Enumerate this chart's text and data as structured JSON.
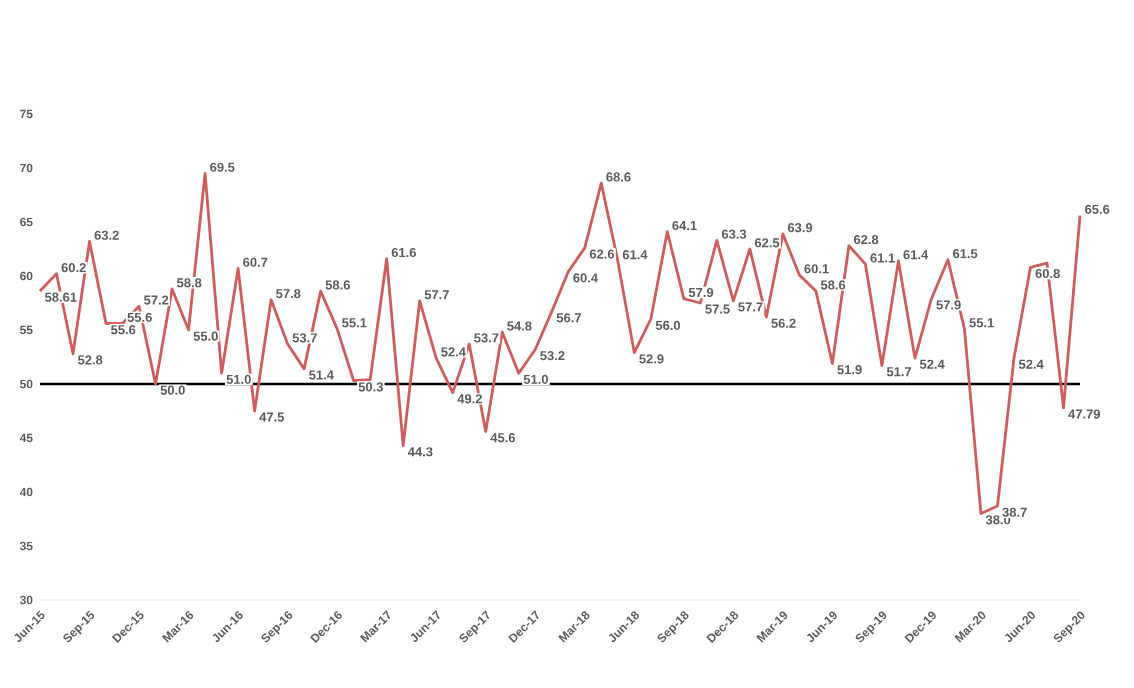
{
  "chart_data": {
    "type": "line",
    "x": [
      "2015-06",
      "2015-07",
      "2015-08",
      "2015-09",
      "2015-10",
      "2015-11",
      "2015-12",
      "2016-01",
      "2016-02",
      "2016-03",
      "2016-04",
      "2016-05",
      "2016-06",
      "2016-07",
      "2016-08",
      "2016-09",
      "2016-10",
      "2016-11",
      "2016-12",
      "2017-01",
      "2017-02",
      "2017-03",
      "2017-04",
      "2017-05",
      "2017-06",
      "2017-07",
      "2017-08",
      "2017-09",
      "2017-10",
      "2017-11",
      "2017-12",
      "2018-01",
      "2018-02",
      "2018-03",
      "2018-04",
      "2018-05",
      "2018-06",
      "2018-07",
      "2018-08",
      "2018-09",
      "2018-10",
      "2018-11",
      "2018-12",
      "2019-01",
      "2019-02",
      "2019-03",
      "2019-04",
      "2019-05",
      "2019-06",
      "2019-07",
      "2019-08",
      "2019-09",
      "2019-10",
      "2019-11",
      "2019-12",
      "2020-01",
      "2020-02",
      "2020-03",
      "2020-04",
      "2020-05",
      "2020-06",
      "2020-07",
      "2020-08",
      "2020-09"
    ],
    "series": [
      {
        "color": "#cd5c5c",
        "values": [
          58.61,
          60.2,
          52.8,
          63.2,
          55.6,
          55.6,
          57.2,
          50.0,
          58.8,
          55.0,
          69.5,
          51.0,
          60.7,
          47.5,
          57.8,
          53.7,
          51.4,
          58.6,
          55.1,
          50.3,
          50.4,
          61.6,
          44.3,
          57.7,
          52.4,
          49.2,
          53.7,
          45.6,
          54.8,
          51.0,
          53.2,
          56.7,
          60.4,
          62.6,
          68.6,
          61.4,
          52.9,
          56.0,
          64.1,
          57.9,
          57.5,
          63.3,
          57.7,
          62.5,
          56.2,
          63.9,
          60.1,
          58.6,
          51.9,
          62.8,
          61.1,
          51.7,
          61.4,
          52.4,
          57.9,
          61.5,
          55.1,
          38.0,
          38.7,
          52.4,
          60.8,
          61.2,
          47.79,
          65.6
        ],
        "value_labels": [
          "58.61",
          "60.2",
          "52.8",
          "63.2",
          "55.6",
          "55.6",
          "57.2",
          "50.0",
          "58.8",
          "55.0",
          "69.5",
          "51.0",
          "60.7",
          "47.5",
          "57.8",
          "53.7",
          "51.4",
          "58.6",
          "55.1",
          "50.3",
          null,
          "61.6",
          "44.3",
          "57.7",
          "52.4",
          "49.2",
          "53.7",
          "45.6",
          "54.8",
          "51.0",
          "53.2",
          "56.7",
          "60.4",
          "62.6",
          "68.6",
          "61.4",
          "52.9",
          "56.0",
          "64.1",
          "57.9",
          "57.5",
          "63.3",
          "57.7",
          "62.5",
          "56.2",
          "63.9",
          "60.1",
          "58.6",
          "51.9",
          "62.8",
          "61.1",
          "51.7",
          "61.4",
          "52.4",
          "57.9",
          "61.5",
          "55.1",
          "38.0",
          "38.7",
          "52.4",
          "60.8",
          null,
          "47.79",
          "65.6"
        ]
      }
    ],
    "xlim": [
      "2015-06",
      "2020-09"
    ],
    "xticks": [
      {
        "value": "2015-06",
        "label": "Jun-15"
      },
      {
        "value": "2015-09",
        "label": "Sep-15"
      },
      {
        "value": "2015-12",
        "label": "Dec-15"
      },
      {
        "value": "2016-03",
        "label": "Mar-16"
      },
      {
        "value": "2016-06",
        "label": "Jun-16"
      },
      {
        "value": "2016-09",
        "label": "Sep-16"
      },
      {
        "value": "2016-12",
        "label": "Dec-16"
      },
      {
        "value": "2017-03",
        "label": "Mar-17"
      },
      {
        "value": "2017-06",
        "label": "Jun-17"
      },
      {
        "value": "2017-09",
        "label": "Sep-17"
      },
      {
        "value": "2017-12",
        "label": "Dec-17"
      },
      {
        "value": "2018-03",
        "label": "Mar-18"
      },
      {
        "value": "2018-06",
        "label": "Jun-18"
      },
      {
        "value": "2018-09",
        "label": "Sep-18"
      },
      {
        "value": "2018-12",
        "label": "Dec-18"
      },
      {
        "value": "2019-03",
        "label": "Mar-19"
      },
      {
        "value": "2019-06",
        "label": "Jun-19"
      },
      {
        "value": "2019-09",
        "label": "Sep-19"
      },
      {
        "value": "2019-12",
        "label": "Dec-19"
      },
      {
        "value": "2020-03",
        "label": "Mar-20"
      },
      {
        "value": "2020-06",
        "label": "Jun-20"
      },
      {
        "value": "2020-09",
        "label": "Sep-20"
      }
    ],
    "ylim": [
      30,
      75
    ],
    "yticks": [
      30,
      35,
      40,
      45,
      50,
      55,
      60,
      65,
      70,
      75
    ],
    "ref_lines": [
      {
        "axis": "y",
        "value": 50,
        "color": "#000000"
      }
    ],
    "marker": "none",
    "grid": false
  }
}
